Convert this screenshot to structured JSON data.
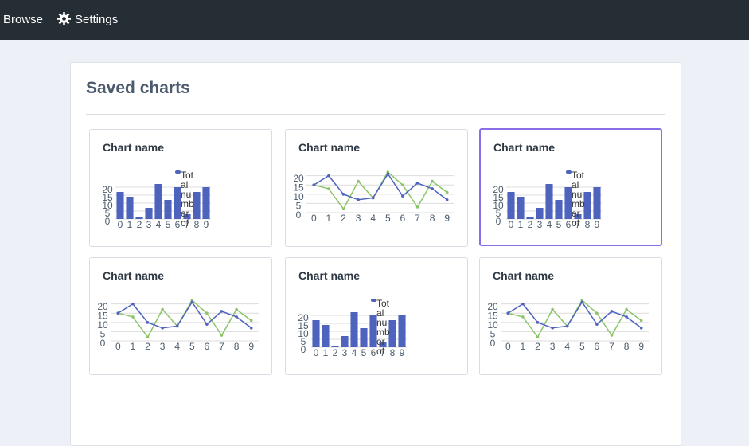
{
  "nav": {
    "items": [
      "Browse",
      "Settings"
    ]
  },
  "page": {
    "title": "Saved charts"
  },
  "cards": [
    {
      "title": "Chart name",
      "chart_data": {
        "type": "bar",
        "categories": [
          "0",
          "1",
          "2",
          "3",
          "4",
          "5",
          "6",
          "7",
          "8",
          "9"
        ],
        "series": [
          {
            "name": "Total number of",
            "color": "#4e63be",
            "values": [
              17,
              14,
              1,
              7,
              22,
              12,
              20,
              3,
              17,
              20
            ]
          }
        ],
        "ylim": [
          0,
          22
        ],
        "yticks": [
          0,
          5,
          10,
          15,
          20
        ],
        "grid": true
      }
    },
    {
      "title": "Chart name",
      "chart_data": {
        "type": "line",
        "categories": [
          "0",
          "1",
          "2",
          "3",
          "4",
          "5",
          "6",
          "7",
          "8",
          "9"
        ],
        "series": [
          {
            "color": "#8cc46a",
            "values": [
              15,
              13,
              2,
              17,
              8,
              22,
              15,
              3,
              17,
              11
            ]
          },
          {
            "color": "#4e63be",
            "values": [
              15,
              20,
              10,
              7,
              8,
              21,
              9,
              16,
              13,
              7
            ]
          }
        ],
        "ylim": [
          0,
          22
        ],
        "yticks": [
          0,
          5,
          10,
          15,
          20
        ],
        "grid": true
      }
    },
    {
      "title": "Chart name",
      "selected": true,
      "chart_data": {
        "type": "bar",
        "categories": [
          "0",
          "1",
          "2",
          "3",
          "4",
          "5",
          "6",
          "7",
          "8",
          "9"
        ],
        "series": [
          {
            "name": "Total number of",
            "color": "#4e63be",
            "values": [
              17,
              14,
              1,
              7,
              22,
              12,
              20,
              3,
              17,
              20
            ]
          }
        ],
        "ylim": [
          0,
          22
        ],
        "yticks": [
          0,
          5,
          10,
          15,
          20
        ],
        "grid": true
      }
    },
    {
      "title": "Chart name",
      "chart_data": {
        "type": "line",
        "categories": [
          "0",
          "1",
          "2",
          "3",
          "4",
          "5",
          "6",
          "7",
          "8",
          "9"
        ],
        "series": [
          {
            "color": "#8cc46a",
            "values": [
              15,
              13,
              2,
              17,
              8,
              22,
              15,
              3,
              17,
              11
            ]
          },
          {
            "color": "#4e63be",
            "values": [
              15,
              20,
              10,
              7,
              8,
              21,
              9,
              16,
              13,
              7
            ]
          }
        ],
        "ylim": [
          0,
          22
        ],
        "yticks": [
          0,
          5,
          10,
          15,
          20
        ],
        "grid": true
      }
    },
    {
      "title": "Chart name",
      "chart_data": {
        "type": "bar",
        "categories": [
          "0",
          "1",
          "2",
          "3",
          "4",
          "5",
          "6",
          "7",
          "8",
          "9"
        ],
        "series": [
          {
            "name": "Total number of",
            "color": "#4e63be",
            "values": [
              17,
              14,
              1,
              7,
              22,
              12,
              20,
              3,
              17,
              20
            ]
          }
        ],
        "ylim": [
          0,
          22
        ],
        "yticks": [
          0,
          5,
          10,
          15,
          20
        ],
        "grid": true
      }
    },
    {
      "title": "Chart name",
      "chart_data": {
        "type": "line",
        "categories": [
          "0",
          "1",
          "2",
          "3",
          "4",
          "5",
          "6",
          "7",
          "8",
          "9"
        ],
        "series": [
          {
            "color": "#8cc46a",
            "values": [
              15,
              13,
              2,
              17,
              8,
              22,
              15,
              3,
              17,
              11
            ]
          },
          {
            "color": "#4e63be",
            "values": [
              15,
              20,
              10,
              7,
              8,
              21,
              9,
              16,
              13,
              7
            ]
          }
        ],
        "ylim": [
          0,
          22
        ],
        "yticks": [
          0,
          5,
          10,
          15,
          20
        ],
        "grid": true
      }
    }
  ]
}
